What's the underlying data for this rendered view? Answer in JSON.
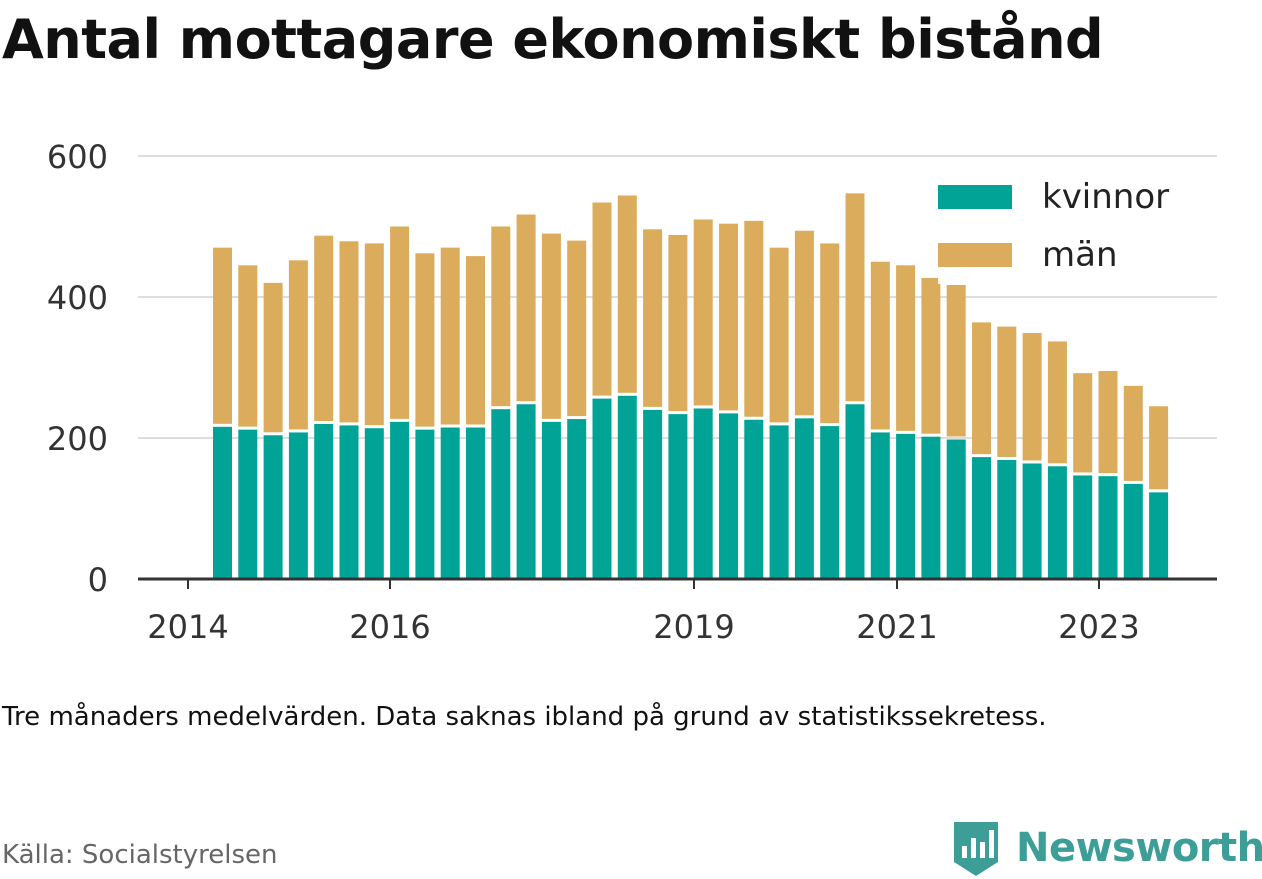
{
  "title": "Antal mottagare ekonomiskt bistånd",
  "note": "Tre månaders medelvärden. Data saknas ibland på grund av statistikssekretess.",
  "source": "Källa: Socialstyrelsen",
  "brand": "Newsworthy",
  "colors": {
    "kvinnor": "#00a396",
    "man": "#dbac5b",
    "grid": "#dddddd",
    "axis": "#333333"
  },
  "chart_data": {
    "type": "bar",
    "stacked": true,
    "ylim": [
      0,
      600
    ],
    "yticks": [
      0,
      200,
      400,
      600
    ],
    "xticks": [
      "2014",
      "2016",
      "2019",
      "2021",
      "2023"
    ],
    "legend": {
      "position": "top-right",
      "entries": [
        "kvinnor",
        "män"
      ]
    },
    "grid": true,
    "series": [
      {
        "name": "kvinnor",
        "values": [
          218,
          214,
          206,
          210,
          222,
          220,
          216,
          225,
          214,
          217,
          217,
          243,
          250,
          225,
          229,
          258,
          262,
          242,
          236,
          244,
          237,
          228,
          220,
          230,
          219,
          250,
          210,
          208,
          204,
          200,
          175,
          171,
          166,
          162,
          149,
          148,
          137,
          125
        ]
      },
      {
        "name": "män",
        "values": [
          252,
          231,
          214,
          242,
          265,
          259,
          260,
          275,
          248,
          253,
          241,
          257,
          267,
          265,
          251,
          276,
          282,
          254,
          252,
          266,
          267,
          280,
          250,
          264,
          257,
          297,
          240,
          237,
          223,
          217,
          189,
          187,
          183,
          175,
          143,
          147,
          137,
          120
        ]
      }
    ]
  }
}
